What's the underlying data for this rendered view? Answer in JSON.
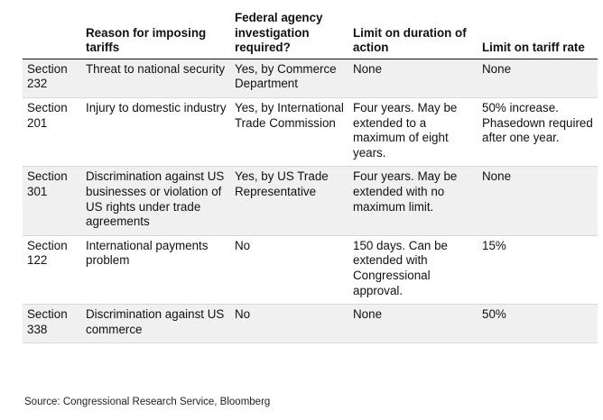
{
  "table": {
    "headers": [
      "",
      "Reason for imposing tariffs",
      "Federal agency investigation required?",
      "Limit on duration of action",
      "Limit on tariff rate"
    ],
    "rows": [
      {
        "section": "Section 232",
        "reason": "Threat to national security",
        "investigation": "Yes, by Commerce Department",
        "duration": "None",
        "rate": "None"
      },
      {
        "section": "Section 201",
        "reason": "Injury to domestic industry",
        "investigation": "Yes, by International Trade Commission",
        "duration": "Four years. May be extended to a maximum of eight years.",
        "rate": "50% increase. Phasedown required after one year."
      },
      {
        "section": "Section 301",
        "reason": "Discrimination against US businesses or violation of US rights under trade agreements",
        "investigation": "Yes, by US Trade Representative",
        "duration": "Four years. May be extended with no maximum limit.",
        "rate": "None"
      },
      {
        "section": "Section 122",
        "reason": "International payments problem",
        "investigation": "No",
        "duration": "150 days. Can be extended with Congressional approval.",
        "rate": "15%"
      },
      {
        "section": "Section 338",
        "reason": "Discrimination against US commerce",
        "investigation": "No",
        "duration": "None",
        "rate": "50%"
      }
    ]
  },
  "source": "Source: Congressional Research Service, Bloomberg",
  "colors": {
    "row_shade": "#f0f0f0",
    "text": "#111111",
    "rule": "#d8d8d8"
  }
}
